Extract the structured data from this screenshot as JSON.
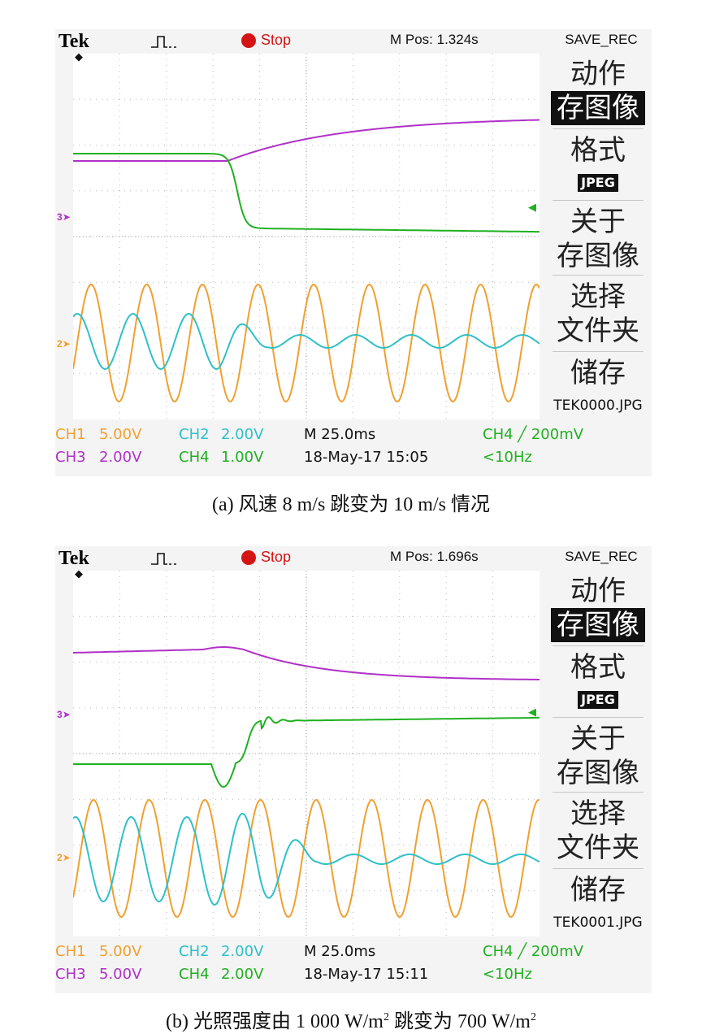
{
  "panels": [
    {
      "id": "a",
      "brand": "Tek",
      "run_state": "Stop",
      "m_pos": "M Pos: 1.324s",
      "menu_title": "SAVE_REC",
      "menu": {
        "action": "动作",
        "save_image": "存图像",
        "format": "格式",
        "format_value": "JPEG",
        "about_line1": "关于",
        "about_line2": "存图像",
        "select_line1": "选择",
        "select_line2": "文件夹",
        "store": "储存",
        "filename": "TEK0000.JPG"
      },
      "markers": {
        "ch3": "3",
        "ch2": "2"
      },
      "status": {
        "ch1_label": "CH1",
        "ch1_scale": "5.00V",
        "ch2_label": "CH2",
        "ch2_scale": "2.00V",
        "ch3_label": "CH3",
        "ch3_scale": "2.00V",
        "ch4_label": "CH4",
        "ch4_scale": "1.00V",
        "timebase": "M 25.0ms",
        "datetime": "18-May-17 15:05",
        "trigger": "CH4 ╱ 200mV",
        "trigger_freq": "<10Hz"
      },
      "caption": "(a) 风速 8 m/s 跳变为 10 m/s 情况"
    },
    {
      "id": "b",
      "brand": "Tek",
      "run_state": "Stop",
      "m_pos": "M Pos: 1.696s",
      "menu_title": "SAVE_REC",
      "menu": {
        "action": "动作",
        "save_image": "存图像",
        "format": "格式",
        "format_value": "JPEG",
        "about_line1": "关于",
        "about_line2": "存图像",
        "select_line1": "选择",
        "select_line2": "文件夹",
        "store": "储存",
        "filename": "TEK0001.JPG"
      },
      "markers": {
        "ch3": "3",
        "ch2": "2"
      },
      "status": {
        "ch1_label": "CH1",
        "ch1_scale": "5.00V",
        "ch2_label": "CH2",
        "ch2_scale": "2.00V",
        "ch3_label": "CH3",
        "ch3_scale": "5.00V",
        "ch4_label": "CH4",
        "ch4_scale": "2.00V",
        "timebase": "M 25.0ms",
        "datetime": "18-May-17 15:11",
        "trigger": "CH4 ╱ 200mV",
        "trigger_freq": "<10Hz"
      },
      "caption_pre": "(b) 光照强度由 1 000 W/m",
      "caption_sup1": "2",
      "caption_mid": " 跳变为 700 W/m",
      "caption_sup2": "2"
    }
  ],
  "colors": {
    "ch1": "#f0a030",
    "ch2": "#2fc0c8",
    "ch3": "#b030c8",
    "ch4": "#20b020",
    "stop": "#d41414"
  }
}
